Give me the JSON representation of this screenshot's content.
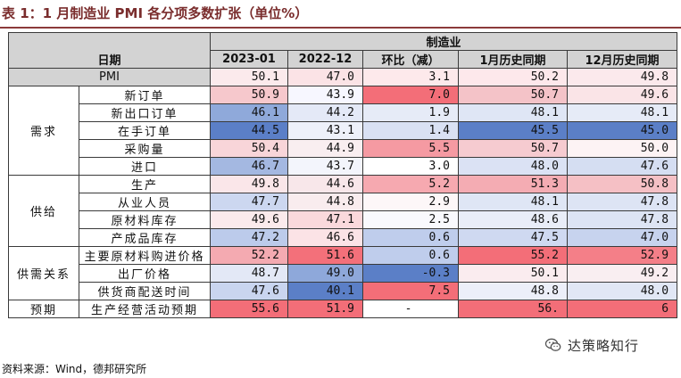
{
  "title": "表 1：1 月制造业 PMI 各分项多数扩张（单位%）",
  "header": {
    "group": "制造业",
    "date_label": "日期",
    "columns": [
      "2023-01",
      "2022-12",
      "环比（减）",
      "1月历史同期",
      "12月历史同期"
    ]
  },
  "pmi_row": {
    "label": "PMI",
    "values": [
      "50.1",
      "47.0",
      "3.1",
      "50.2",
      "49.8"
    ],
    "colors": [
      "#fbeaec",
      "#fbe3e6",
      "#fde9eb",
      "#fde8eb",
      "#fbe9ec"
    ]
  },
  "groups": [
    {
      "name": "需求",
      "rows": [
        {
          "label": "新订单",
          "values": [
            "50.9",
            "43.9",
            "7.0",
            "50.7",
            "49.6"
          ],
          "colors": [
            "#f6c8cc",
            "#f7f7ff",
            "#f36e78",
            "#f4c3c8",
            "#fae4e7"
          ]
        },
        {
          "label": "新出口订单",
          "values": [
            "46.1",
            "44.2",
            "1.9",
            "48.1",
            "48.1"
          ],
          "colors": [
            "#8fa9da",
            "#e4e9f7",
            "#e6ebf7",
            "#dfe6f5",
            "#e6ebf7"
          ]
        },
        {
          "label": "在手订单",
          "values": [
            "44.5",
            "43.1",
            "1.4",
            "45.5",
            "45.0"
          ],
          "colors": [
            "#5b7fc7",
            "#eef1fa",
            "#d9e1f3",
            "#5b7fc7",
            "#5b7fc7"
          ]
        },
        {
          "label": "采购量",
          "values": [
            "50.4",
            "44.9",
            "5.5",
            "50.7",
            "50.0"
          ],
          "colors": [
            "#f8d5d9",
            "#f9eef0",
            "#f59aa2",
            "#f6cbd0",
            "#fdf3f4"
          ]
        },
        {
          "label": "进口",
          "values": [
            "46.7",
            "43.7",
            "3.0",
            "48.0",
            "47.6"
          ],
          "colors": [
            "#a4b8e1",
            "#f3f5fc",
            "#ffffff",
            "#dbe2f4",
            "#d5deF2"
          ]
        }
      ]
    },
    {
      "name": "供给",
      "rows": [
        {
          "label": "生产",
          "values": [
            "49.8",
            "44.6",
            "5.2",
            "51.3",
            "50.8"
          ],
          "colors": [
            "#fae6e9",
            "#f8e7ea",
            "#f6a9b0",
            "#f4acb3",
            "#f5c0c5"
          ]
        },
        {
          "label": "从业人员",
          "values": [
            "47.7",
            "44.8",
            "2.9",
            "48.1",
            "47.8"
          ],
          "colors": [
            "#ccd7f0",
            "#f9ecee",
            "#fdf7f8",
            "#dfe6f5",
            "#dde4f4"
          ]
        },
        {
          "label": "原材料库存",
          "values": [
            "49.6",
            "47.1",
            "2.5",
            "48.6",
            "47.8"
          ],
          "colors": [
            "#fbeaec",
            "#fad9dc",
            "#f9f9fd",
            "#e9edf8",
            "#dde4f4"
          ]
        },
        {
          "label": "产成品库存",
          "values": [
            "47.2",
            "46.6",
            "0.6",
            "47.5",
            "47.0"
          ],
          "colors": [
            "#bccbeb",
            "#fbe3e6",
            "#bfcdec",
            "#cfd9f1",
            "#c7d3ee"
          ]
        }
      ]
    },
    {
      "name": "供需关系",
      "rows": [
        {
          "label": "主要原材料购进价格",
          "values": [
            "52.2",
            "51.6",
            "0.6",
            "55.2",
            "52.9"
          ],
          "colors": [
            "#f4aab1",
            "#f3707a",
            "#bfcdec",
            "#f36e78",
            "#f47f88"
          ]
        },
        {
          "label": "出厂价格",
          "values": [
            "48.7",
            "49.0",
            "-0.3",
            "50.1",
            "49.2"
          ],
          "colors": [
            "#e3e8f6",
            "#8ea8da",
            "#5b7fc7",
            "#faecef",
            "#f9eef1"
          ]
        },
        {
          "label": "供货商配送时间",
          "values": [
            "47.6",
            "40.1",
            "7.5",
            "48.8",
            "48.0"
          ],
          "colors": [
            "#c9d5ef",
            "#5b7fc7",
            "#f36e78",
            "#eceff9",
            "#e1e7f5"
          ]
        }
      ]
    },
    {
      "name": "预期",
      "rows": [
        {
          "label": "生产经营活动预期",
          "values": [
            "55.6",
            "51.9",
            "-",
            "56.",
            "6"
          ],
          "colors": [
            "#f36e78",
            "#f36e78",
            "#ffffff",
            "#f36e78",
            "#f36e78"
          ]
        }
      ]
    }
  ],
  "source": "资料来源：Wind，德邦研究所",
  "watermark": {
    "text": "达策略知行",
    "icon": "wechat-icon"
  }
}
